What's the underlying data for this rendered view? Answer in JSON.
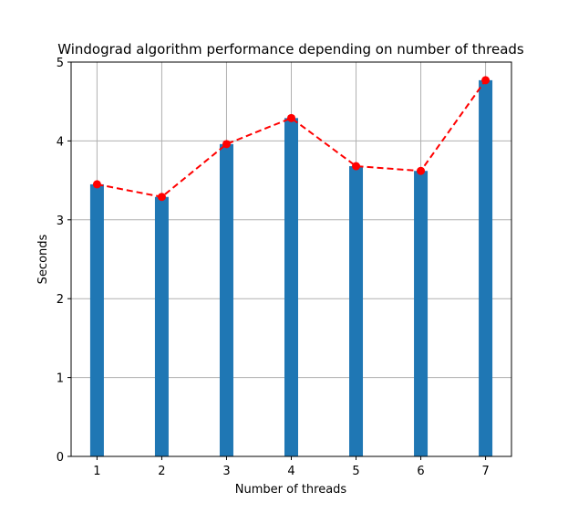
{
  "chart_data": {
    "type": "bar",
    "title": "Windograd algorithm performance depending on number of threads",
    "xlabel": "Number of threads",
    "ylabel": "Seconds",
    "categories": [
      "1",
      "2",
      "3",
      "4",
      "5",
      "6",
      "7"
    ],
    "x": [
      1,
      2,
      3,
      4,
      5,
      6,
      7
    ],
    "series": [
      {
        "type": "bar",
        "values": [
          3.45,
          3.29,
          3.96,
          4.29,
          3.68,
          3.62,
          4.77
        ]
      },
      {
        "type": "line",
        "style": "dashed",
        "marker": "circle",
        "values": [
          3.45,
          3.29,
          3.96,
          4.29,
          3.68,
          3.62,
          4.77
        ]
      }
    ],
    "ylim": [
      0,
      5
    ],
    "yticks": [
      "0",
      "1",
      "2",
      "3",
      "4",
      "5"
    ],
    "grid": true,
    "colors": {
      "bar": "#1f77b4",
      "line": "#ff0000",
      "grid": "#b0b0b0"
    }
  }
}
